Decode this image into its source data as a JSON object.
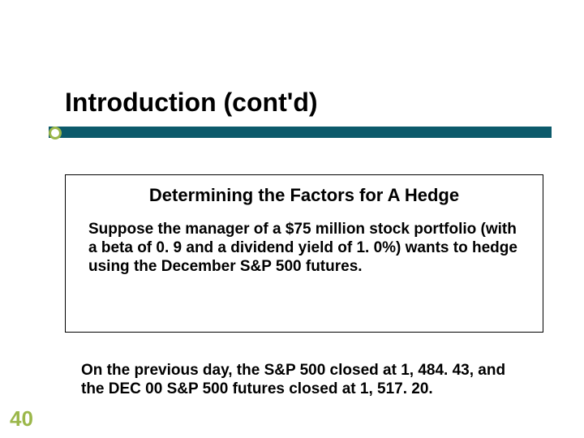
{
  "slide": {
    "title": "Introduction (cont'd)",
    "page_number": "40",
    "colors": {
      "accent_bar": "#0c5a6b",
      "bullet_ring": "#9bb74a",
      "page_number": "#9bb74a",
      "text": "#000000",
      "background": "#ffffff",
      "box_border": "#000000"
    },
    "fontsize": {
      "title": 32,
      "box_title": 22,
      "body": 19,
      "page_number": 26
    },
    "content_box": {
      "heading": "Determining the Factors for A Hedge",
      "body": "Suppose the manager of a $75 million stock portfolio (with a beta of 0. 9 and a dividend yield of 1. 0%) wants to hedge using the December S&P 500 futures."
    },
    "lower_paragraph": "On the previous day, the S&P 500 closed at 1, 484. 43, and the DEC 00 S&P 500 futures closed at 1, 517. 20."
  }
}
